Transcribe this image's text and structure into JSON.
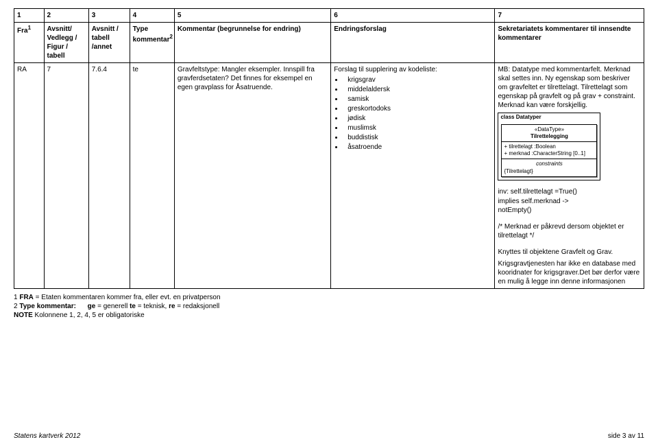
{
  "columns": {
    "nums": [
      "1",
      "2",
      "3",
      "4",
      "5",
      "6",
      "7"
    ],
    "headers": [
      "Fra",
      "Avsnitt/ Vedlegg / Figur / tabell",
      "Avsnitt / tabell /annet",
      "Type kommentar",
      "Kommentar (begrunnelse for endring)",
      "Endringsforslag",
      "Sekretariatets kommentarer til innsendte kommentarer"
    ],
    "sup1": "1",
    "sup2": "2"
  },
  "row": {
    "c1": "RA",
    "c2": "7",
    "c3": "7.6.4",
    "c4": "te",
    "c5": "Gravfeltstype: Mangler eksempler. Innspill fra gravferdsetaten? Det finnes for eksempel en egen gravplass for Åsatruende.",
    "c6_intro": "Forslag til supplering av kodeliste:",
    "c6_list": [
      "krigsgrav",
      "middelaldersk",
      "samisk",
      "greskortodoks",
      "jødisk",
      "muslimsk",
      "buddistisk",
      "åsatroende"
    ],
    "c7_p1": "MB: Datatype med kommentarfelt. Merknad skal settes inn. Ny egenskap som beskriver om gravfeltet er tilrettelagt. Tilrettelagt som egenskap på gravfelt og på grav + constraint. Merknad kan være forskjellig.",
    "uml_title": "class Datatyper",
    "uml_stereo": "«DataType»",
    "uml_name": "Tilrettelegging",
    "uml_attr1": "+   tilrettelagt :Boolean",
    "uml_attr2": "+   merknad :CharacterString [0..1]",
    "uml_cons_label": "constraints",
    "uml_cons": "{Tilrettelagt}",
    "c7_code1": "inv: self.tilrettelagt =True()",
    "c7_code2": "implies self.merknad ->",
    "c7_code3": "notEmpty()",
    "c7_p2": "/* Merknad er påkrevd dersom objektet er tilrettelagt */",
    "c7_p3": "Knyttes til objektene Gravfelt og Grav.",
    "c7_p4": "Krigsgravtjenesten har ikke en database med kooridnater for krigsgraver.Det bør derfor være en mulig å legge inn denne informasjonen"
  },
  "footnotes": {
    "f1a": "1  ",
    "f1b": "FRA",
    "f1c": " = Etaten kommentaren kommer fra, eller evt. en privatperson",
    "f2a": "2  ",
    "f2label": "Type kommentar:",
    "f2ge_b": "ge",
    "f2ge_t": " = generell  ",
    "f2te_b": "te",
    "f2te_t": " = teknisk,  ",
    "f2re_b": "re",
    "f2re_t": " = redaksjonell",
    "note_b": "NOTE",
    "note_t": " Kolonnene 1, 2, 4, 5 er obligatoriske"
  },
  "footer": {
    "left": "Statens kartverk 2012",
    "right": "side 3 av 11"
  },
  "widths": [
    "40px",
    "60px",
    "55px",
    "60px",
    "210px",
    "220px",
    "200px"
  ]
}
